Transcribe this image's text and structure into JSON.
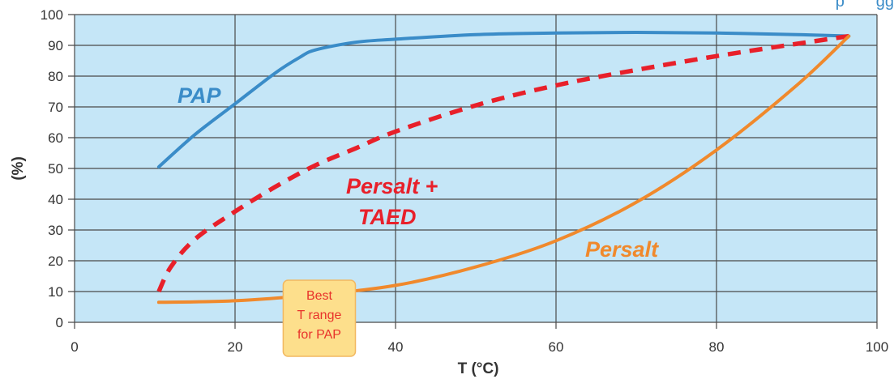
{
  "chart_data": {
    "type": "line",
    "title": "",
    "xlabel": "T (°C)",
    "ylabel": "(%)",
    "xlim": [
      0,
      100
    ],
    "ylim": [
      0,
      100
    ],
    "x_ticks": [
      "0",
      "20",
      "40",
      "60",
      "80",
      "100"
    ],
    "y_ticks": [
      "0",
      "10",
      "20",
      "30",
      "40",
      "50",
      "60",
      "70",
      "80",
      "90",
      "100"
    ],
    "grid": true,
    "background_color": "#c5e6f7",
    "series": [
      {
        "name": "PAP",
        "color": "#3a8cc8",
        "dash": false,
        "x": [
          10.5,
          15,
          20,
          25,
          28,
          30,
          35,
          40,
          50,
          60,
          70,
          80,
          90,
          96.5
        ],
        "y": [
          50.5,
          61,
          71,
          81,
          86,
          88.5,
          91,
          92,
          93.5,
          94,
          94.2,
          94,
          93.5,
          93
        ]
      },
      {
        "name": "Persalt + TAED",
        "color": "#e8202a",
        "dash": true,
        "x": [
          10.5,
          12,
          15,
          20,
          25,
          30,
          35,
          40,
          50,
          60,
          70,
          80,
          90,
          96.5
        ],
        "y": [
          10,
          18,
          27,
          36,
          44,
          51,
          56.5,
          62,
          70.5,
          77,
          82,
          86.5,
          90.5,
          93
        ]
      },
      {
        "name": "Persalt",
        "color": "#f0892c",
        "dash": false,
        "x": [
          10.5,
          20,
          30,
          40,
          50,
          60,
          70,
          80,
          90,
          96.5
        ],
        "y": [
          6.5,
          7,
          9,
          12,
          18,
          26.5,
          39,
          56,
          77,
          93
        ]
      }
    ],
    "annotations": [
      {
        "text": "PAP",
        "color": "#3a8cc8"
      },
      {
        "text": "Persalt +",
        "color": "#e8202a"
      },
      {
        "text": "TAED",
        "color": "#e8202a"
      },
      {
        "text": "Persalt",
        "color": "#f0892c"
      }
    ],
    "note": {
      "lines": [
        "Best",
        "T range",
        "for PAP"
      ],
      "x_range": [
        26,
        35
      ],
      "fill": "#fddf8c",
      "border": "#f2b860"
    }
  },
  "corner_label": "p       gg"
}
